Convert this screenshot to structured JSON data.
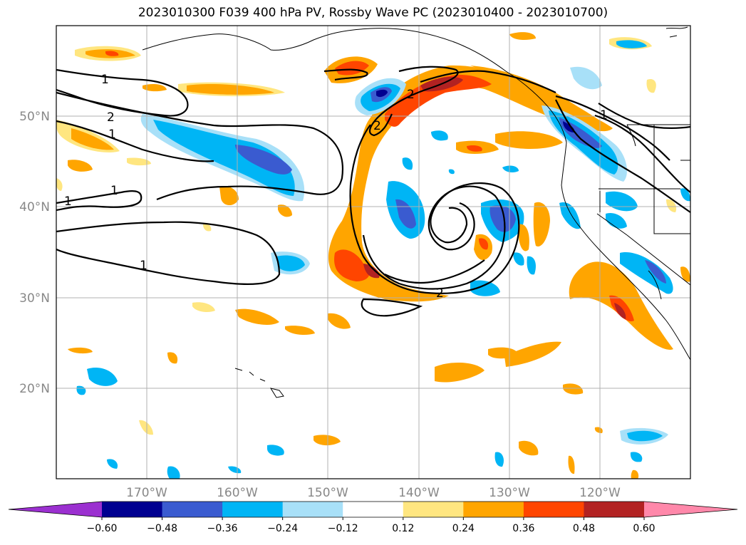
{
  "title": "2023010300 F039 400 hPa PV, Rossby Wave PC (2023010400 - 2023010700)",
  "map": {
    "lon_range": [
      -180,
      -110
    ],
    "lat_range": [
      10,
      60
    ],
    "lat_ticks": [
      {
        "value": 20,
        "label": "20°N"
      },
      {
        "value": 30,
        "label": "30°N"
      },
      {
        "value": 40,
        "label": "40°N"
      },
      {
        "value": 50,
        "label": "50°N"
      }
    ],
    "lon_ticks": [
      {
        "value": -170,
        "label": "170°W"
      },
      {
        "value": -160,
        "label": "160°W"
      },
      {
        "value": -150,
        "label": "150°W"
      },
      {
        "value": -140,
        "label": "140°W"
      },
      {
        "value": -130,
        "label": "130°W"
      },
      {
        "value": -120,
        "label": "120°W"
      }
    ],
    "gridlines": true,
    "contour_labels": [
      "1",
      "2",
      "1",
      "1",
      "1",
      "1",
      "2",
      "2",
      "2",
      "1"
    ]
  },
  "colorbar": {
    "orientation": "horizontal",
    "extend": "both",
    "bounds": [
      -0.6,
      -0.48,
      -0.36,
      -0.24,
      -0.12,
      0.12,
      0.24,
      0.36,
      0.48,
      0.6
    ],
    "tick_labels": [
      "−0.60",
      "−0.48",
      "−0.36",
      "−0.24",
      "−0.12",
      "0.12",
      "0.24",
      "0.36",
      "0.48",
      "0.60"
    ],
    "colors": [
      "#9b30d0",
      "#000090",
      "#3a5bd0",
      "#00b5f5",
      "#a8e0f8",
      "#ffffff",
      "#ffe680",
      "#ffa500",
      "#ff4500",
      "#b22222",
      "#ff88aa"
    ]
  }
}
